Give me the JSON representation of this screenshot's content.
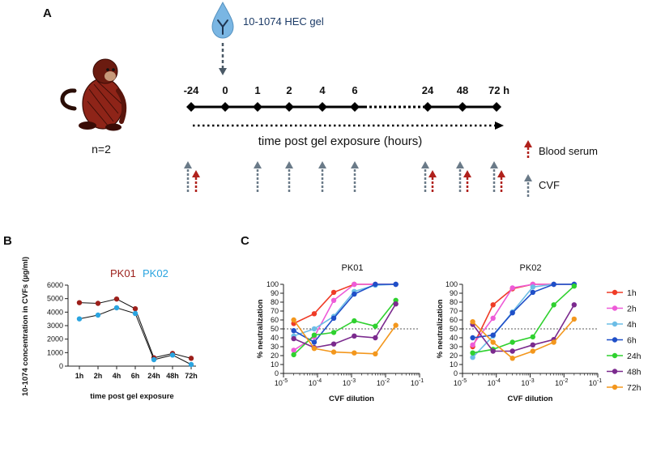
{
  "panels": {
    "a": "A",
    "b": "B",
    "c": "C"
  },
  "timeline": {
    "gel_label": "10-1074 HEC gel",
    "n_label": "n=2",
    "time_points": [
      "-24",
      "0",
      "1",
      "2",
      "4",
      "6",
      "24",
      "48",
      "72 h"
    ],
    "axis_label": "time post gel exposure (hours)",
    "legend": {
      "serum": "Blood serum",
      "cvf": "CVF"
    },
    "serum_time_points": [
      "-24",
      "24",
      "48",
      "72 h"
    ],
    "cvf_time_points": [
      "-24",
      "1",
      "2",
      "4",
      "6",
      "24",
      "48",
      "72 h"
    ],
    "colors": {
      "serum": "#b0211c",
      "cvf": "#6a7a88",
      "drop": "#7ab6e3",
      "line": "#000000"
    },
    "icons": {
      "drop": "antibody-drop-icon",
      "monkey": "monkey-icon"
    }
  },
  "chart_data": [
    {
      "type": "line",
      "title": "",
      "legend": [
        "PK01",
        "PK02"
      ],
      "categories": [
        "1h",
        "2h",
        "4h",
        "6h",
        "24h",
        "48h",
        "72h"
      ],
      "series": [
        {
          "name": "PK01",
          "color": "#9c1f1a",
          "values": [
            4700,
            4650,
            4970,
            4250,
            620,
            940,
            580
          ]
        },
        {
          "name": "PK02",
          "color": "#2aa4e0",
          "values": [
            3500,
            3780,
            4320,
            3900,
            480,
            820,
            120
          ]
        }
      ],
      "xlabel": "time post gel exposure",
      "ylabel": "10-1074 concentration in CVFs (µg/ml)",
      "ylim": [
        0,
        6000
      ],
      "yticks": [
        "0",
        "1000",
        "2000",
        "3000",
        "4000",
        "5000",
        "6000"
      ]
    },
    {
      "type": "line",
      "title": "PK01",
      "xscale": "log",
      "x": [
        2e-05,
        8e-05,
        0.0003,
        0.0012,
        0.005,
        0.02
      ],
      "xticks": [
        "10-5",
        "10-4",
        "10-3",
        "10-2",
        "10-1"
      ],
      "xlim": [
        1e-05,
        0.1
      ],
      "ylim": [
        0,
        100
      ],
      "yticks": [
        "0",
        "10",
        "20",
        "30",
        "40",
        "50",
        "60",
        "70",
        "80",
        "90",
        "100"
      ],
      "xlabel": "CVF dilution",
      "ylabel": "% neutralization",
      "threshold": 50,
      "series": [
        {
          "name": "1h",
          "values": [
            56,
            67,
            91,
            100,
            100,
            100
          ]
        },
        {
          "name": "2h",
          "values": [
            26,
            41,
            82,
            100,
            100,
            100
          ]
        },
        {
          "name": "4h",
          "values": [
            42,
            50,
            64,
            92,
            99,
            100
          ]
        },
        {
          "name": "6h",
          "values": [
            48,
            35,
            62,
            89,
            100,
            100
          ]
        },
        {
          "name": "24h",
          "values": [
            21,
            43,
            46,
            59,
            53,
            82
          ]
        },
        {
          "name": "48h",
          "values": [
            39,
            29,
            33,
            42,
            40,
            78
          ]
        },
        {
          "name": "72h",
          "values": [
            60,
            28,
            24,
            23,
            22,
            54
          ]
        }
      ]
    },
    {
      "type": "line",
      "title": "PK02",
      "xscale": "log",
      "x": [
        2e-05,
        8e-05,
        0.0003,
        0.0012,
        0.005,
        0.02
      ],
      "xticks": [
        "10-5",
        "10-4",
        "10-3",
        "10-2",
        "10-1"
      ],
      "xlim": [
        1e-05,
        0.1
      ],
      "ylim": [
        0,
        100
      ],
      "yticks": [
        "0",
        "10",
        "20",
        "30",
        "40",
        "50",
        "60",
        "70",
        "80",
        "90",
        "100"
      ],
      "xlabel": "CVF dilution",
      "ylabel": "% neutralization",
      "threshold": 50,
      "series": [
        {
          "name": "1h",
          "values": [
            30,
            77,
            95,
            100,
            100,
            100
          ]
        },
        {
          "name": "2h",
          "values": [
            32,
            62,
            96,
            100,
            100,
            100
          ]
        },
        {
          "name": "4h",
          "values": [
            18,
            42,
            69,
            97,
            100,
            100
          ]
        },
        {
          "name": "6h",
          "values": [
            40,
            43,
            68,
            91,
            100,
            100
          ]
        },
        {
          "name": "24h",
          "values": [
            23,
            27,
            35,
            41,
            77,
            98
          ]
        },
        {
          "name": "48h",
          "values": [
            55,
            25,
            25,
            32,
            38,
            77
          ]
        },
        {
          "name": "72h",
          "values": [
            58,
            35,
            17,
            25,
            35,
            61
          ]
        }
      ]
    }
  ],
  "legend_c": {
    "items": [
      {
        "name": "1h",
        "color": "#ef3b26"
      },
      {
        "name": "2h",
        "color": "#ee5bd8"
      },
      {
        "name": "4h",
        "color": "#6cbde6"
      },
      {
        "name": "6h",
        "color": "#1f4fc8"
      },
      {
        "name": "24h",
        "color": "#2fd12f"
      },
      {
        "name": "48h",
        "color": "#7b2a8e"
      },
      {
        "name": "72h",
        "color": "#f3971d"
      }
    ]
  }
}
